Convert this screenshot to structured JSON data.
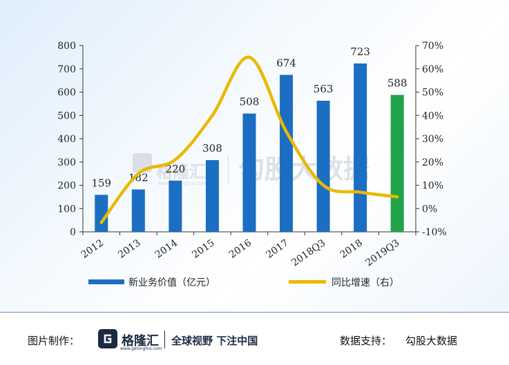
{
  "chart_data": {
    "type": "bar+line",
    "categories": [
      "2012",
      "2013",
      "2014",
      "2015",
      "2016",
      "2017",
      "2018Q3",
      "2018",
      "2019Q3"
    ],
    "series": [
      {
        "name": "新业务价值（亿元）",
        "type": "bar",
        "axis": "left",
        "values": [
          159,
          182,
          220,
          308,
          508,
          674,
          563,
          723,
          588
        ],
        "colors": [
          "#1b6ec2",
          "#1b6ec2",
          "#1b6ec2",
          "#1b6ec2",
          "#1b6ec2",
          "#1b6ec2",
          "#1b6ec2",
          "#1b6ec2",
          "#21a34a"
        ]
      },
      {
        "name": "同比增速（右）",
        "type": "line",
        "axis": "right",
        "color": "#e9b900",
        "values": [
          -6,
          15,
          21,
          40,
          65,
          33,
          10,
          7,
          5
        ]
      }
    ],
    "left_axis": {
      "ylim": [
        0,
        800
      ],
      "ticks": [
        "0",
        "100",
        "200",
        "300",
        "400",
        "500",
        "600",
        "700",
        "800"
      ]
    },
    "right_axis": {
      "ylim": [
        -10,
        70
      ],
      "ticks": [
        "-10%",
        "0%",
        "10%",
        "20%",
        "30%",
        "40%",
        "50%",
        "60%",
        "70%"
      ]
    },
    "legend_position": "bottom",
    "grid": false
  },
  "watermark": {
    "brand": "格隆汇",
    "url": "www.gelonghui.com",
    "text": "勾股大数据"
  },
  "footer": {
    "made_by_label": "图片制作：",
    "logo_text": "格隆汇",
    "logo_sub": "www.gelonghui.com",
    "slogan": "全球视野 下注中国",
    "source_label": "数据支持：",
    "source_value": "勾股大数据"
  },
  "colors": {
    "bar": "#1b6ec2",
    "bar_highlight": "#21a34a",
    "line": "#e9b900",
    "axis": "#333333"
  }
}
